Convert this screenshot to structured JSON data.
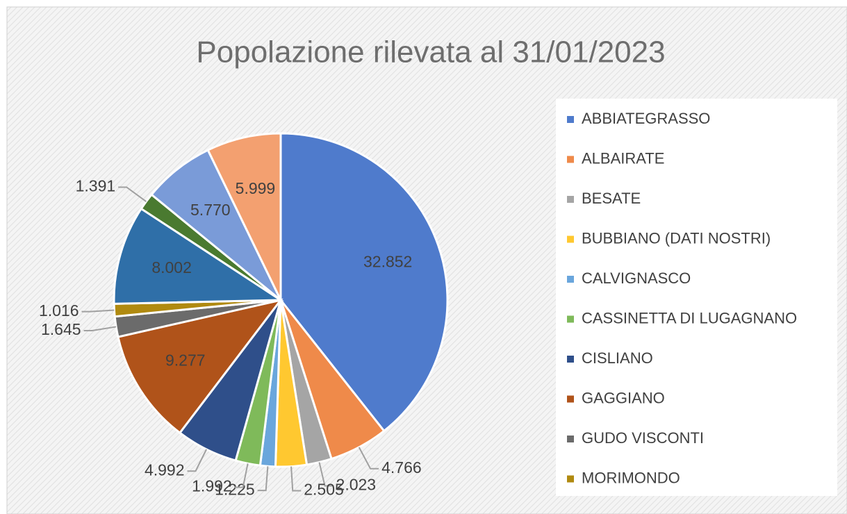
{
  "chart_data": {
    "type": "pie",
    "title": "Popolazione rilevata al 31/01/2023",
    "categories": [
      "ABBIATEGRASSO",
      "ALBAIRATE",
      "BESATE",
      "BUBBIANO (DATI NOSTRI)",
      "CALVIGNASCO",
      "CASSINETTA DI LUGAGNANO",
      "CISLIANO",
      "GAGGIANO",
      "GUDO VISCONTI",
      "MORIMONDO",
      null,
      null,
      null,
      null
    ],
    "values": [
      32852,
      4766,
      2023,
      2505,
      1225,
      1992,
      4992,
      9277,
      1645,
      1016,
      8002,
      1391,
      5770,
      5999
    ],
    "value_labels": [
      "32.852",
      "4.766",
      "2.023",
      "2.505",
      "1.225",
      "1.992",
      "4.992",
      "9.277",
      "1.645",
      "1.016",
      "8.002",
      "1.391",
      "5.770",
      "5.999"
    ],
    "colors": [
      "#4f7bcc",
      "#ef8a4a",
      "#a5a5a5",
      "#ffc830",
      "#6aa6dc",
      "#7fba5a",
      "#2f4f8a",
      "#b0531a",
      "#6b6b6b",
      "#b08a10",
      "#2f6fa8",
      "#4a7a30",
      "#7a9bd8",
      "#f3a070"
    ]
  }
}
